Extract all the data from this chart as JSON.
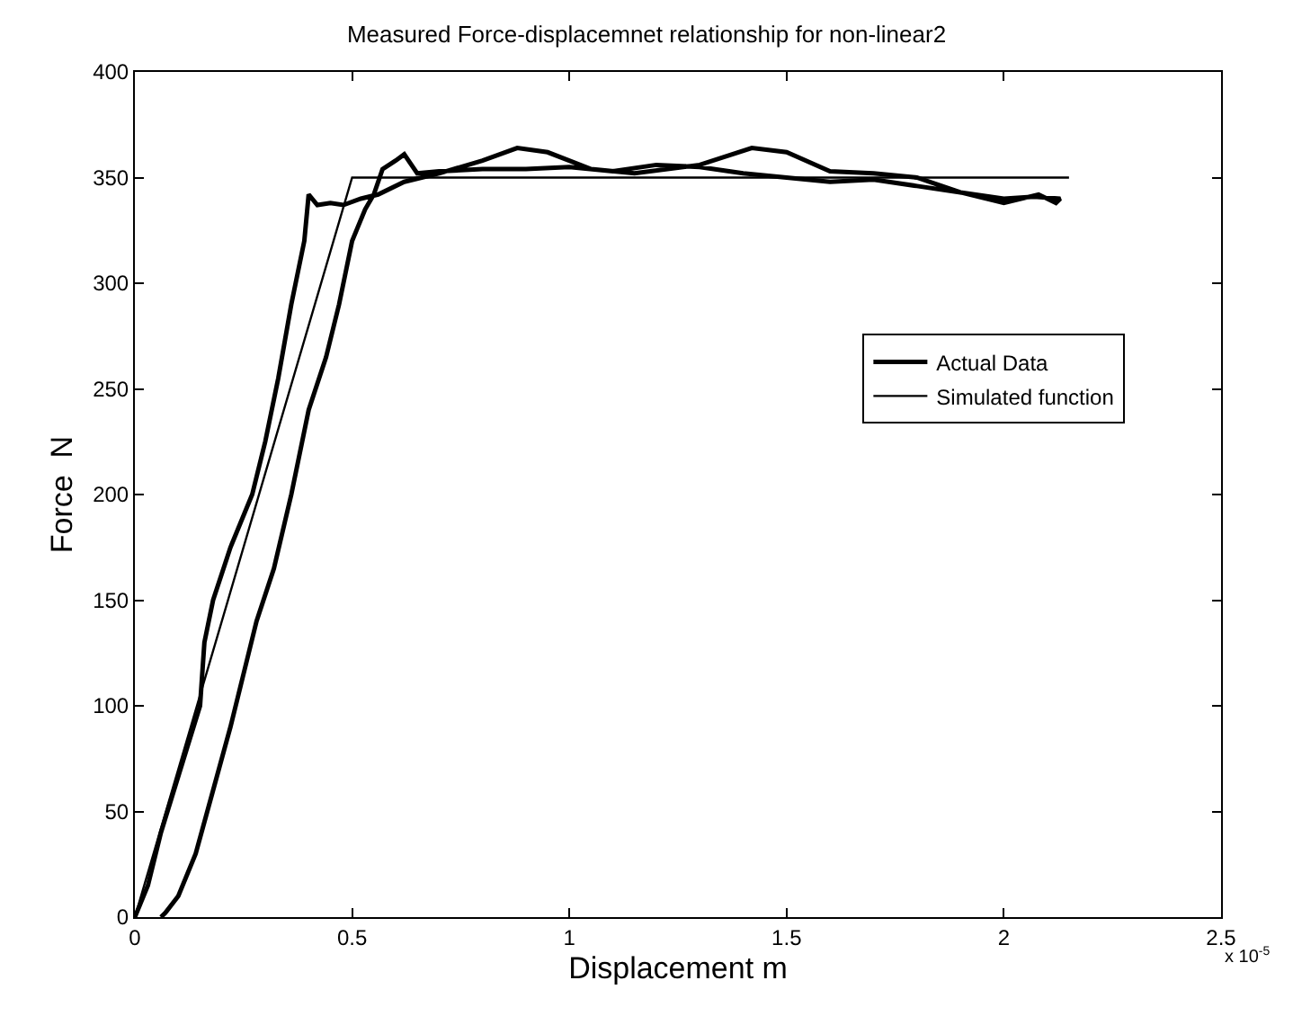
{
  "chart_data": {
    "type": "line",
    "title": "Measured Force-displacemnet relationship for non-linear2",
    "xlabel": "Displacement m",
    "ylabel": "Force  N",
    "xlim": [
      0,
      2.5
    ],
    "xticks": [
      0,
      0.5,
      1,
      1.5,
      2,
      2.5
    ],
    "ylim": [
      0,
      400
    ],
    "yticks": [
      0,
      50,
      100,
      150,
      200,
      250,
      300,
      350,
      400
    ],
    "annotations": [
      "x 10$^{-5}$"
    ],
    "legend": "right",
    "marker": "none",
    "line_style": "solid",
    "series": [
      {
        "name": "Actual Data",
        "color": "#000000",
        "x": [
          0,
          0.03,
          0.06,
          0.09,
          0.12,
          0.15,
          0.16,
          0.18,
          0.22,
          0.27,
          0.3,
          0.33,
          0.36,
          0.39,
          0.4,
          0.42,
          0.45,
          0.48,
          0.52,
          0.56,
          0.62,
          0.7,
          0.8,
          0.88,
          0.95,
          1.05,
          1.15,
          1.3,
          1.42,
          1.5,
          1.6,
          1.7,
          1.8,
          1.9,
          2.0,
          2.07,
          2.13,
          2.12,
          2.08,
          2.0,
          1.9,
          1.8,
          1.7,
          1.6,
          1.5,
          1.4,
          1.3,
          1.2,
          1.1,
          1.0,
          0.9,
          0.8,
          0.7,
          0.65,
          0.62,
          0.6,
          0.57,
          0.55,
          0.53,
          0.5,
          0.47,
          0.44,
          0.4,
          0.36,
          0.32,
          0.28,
          0.25,
          0.22,
          0.18,
          0.14,
          0.1,
          0.07,
          0.06
        ],
        "values": [
          0,
          15,
          40,
          60,
          80,
          100,
          130,
          150,
          175,
          200,
          225,
          255,
          290,
          320,
          342,
          337,
          338,
          337,
          340,
          342,
          348,
          352,
          358,
          364,
          362,
          354,
          352,
          356,
          364,
          362,
          353,
          352,
          350,
          343,
          340,
          341,
          340,
          338,
          342,
          338,
          343,
          346,
          349,
          348,
          350,
          352,
          355,
          356,
          353,
          355,
          354,
          354,
          353,
          352,
          361,
          358,
          354,
          342,
          335,
          320,
          290,
          265,
          240,
          200,
          165,
          140,
          115,
          90,
          60,
          30,
          10,
          2,
          0
        ]
      },
      {
        "name": "Simulated function",
        "color": "#000000",
        "x": [
          0,
          0.5,
          2.15
        ],
        "values": [
          0,
          350,
          350
        ]
      }
    ]
  }
}
